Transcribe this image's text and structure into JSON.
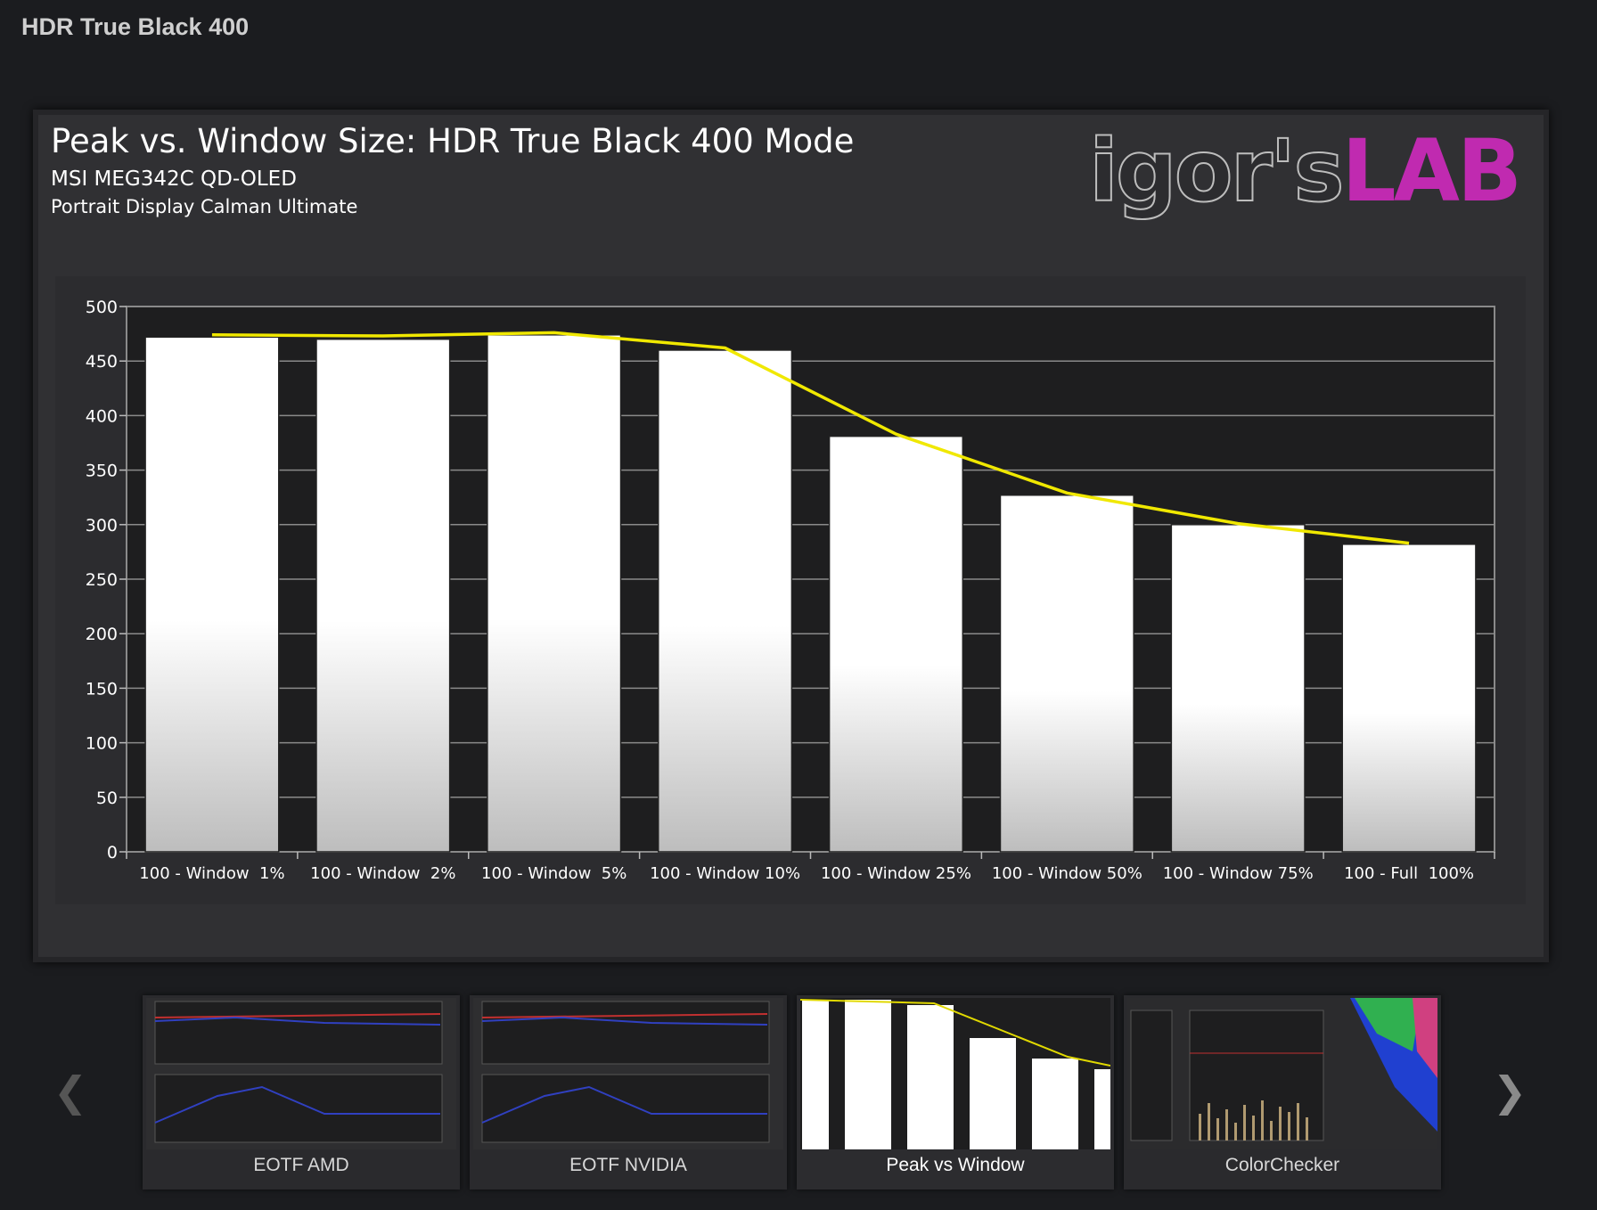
{
  "page": {
    "title": "HDR True Black 400"
  },
  "chart": {
    "title": "Peak vs. Window Size: HDR True Black 400 Mode",
    "subtitle": "MSI MEG342C QD-OLED",
    "source": "Portrait Display Calman Ultimate",
    "logo": {
      "text_main": "igor'sLAB",
      "part1": "igor's",
      "part2": "LAB",
      "color": "#c02ab0"
    }
  },
  "chart_data": {
    "type": "bar",
    "categories": [
      "100 - Window  1%",
      "100 - Window  2%",
      "100 - Window  5%",
      "100 - Window 10%",
      "100 - Window 25%",
      "100 - Window 50%",
      "100 - Window 75%",
      "100 - Full  100%"
    ],
    "values": [
      472,
      470,
      474,
      460,
      381,
      327,
      300,
      282
    ],
    "line_values": [
      474,
      473,
      476,
      462,
      383,
      329,
      301,
      283
    ],
    "ylim": [
      0,
      500
    ],
    "yticks": [
      "0",
      "50",
      "100",
      "150",
      "200",
      "250",
      "300",
      "350",
      "400",
      "450",
      "500"
    ],
    "grid": true,
    "bar_color": "#ffffff",
    "line_color": "#f0e800"
  },
  "gallery": {
    "thumbs": [
      {
        "label": "EOTF AMD"
      },
      {
        "label": "EOTF NVIDIA"
      },
      {
        "label": "Peak vs Window",
        "active": true
      },
      {
        "label": "ColorChecker"
      }
    ],
    "prev_icon": "chevron-left-icon",
    "next_icon": "chevron-right-icon"
  }
}
